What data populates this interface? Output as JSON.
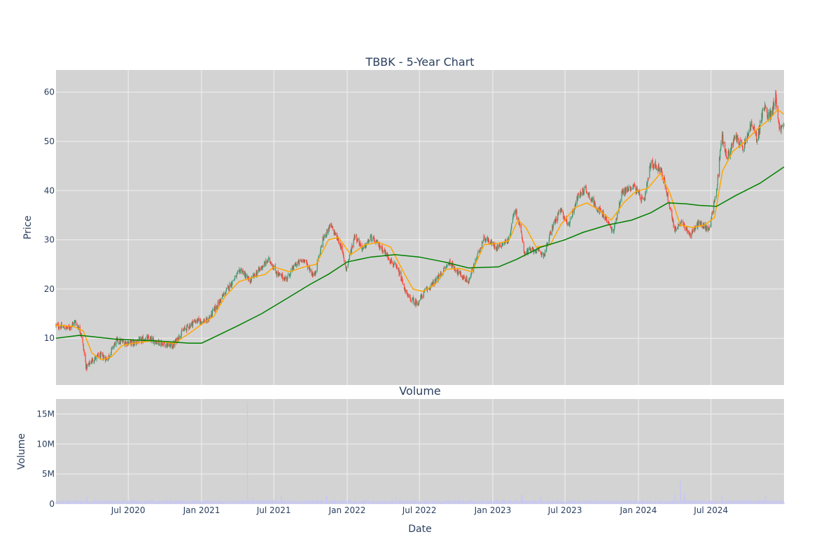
{
  "chart_data": [
    {
      "type": "candlestick",
      "title": "TBBK - 5-Year Chart",
      "ylabel": "Price",
      "ylim": [
        0.5,
        64.5
      ],
      "y_ticks": [
        10,
        20,
        30,
        40,
        50,
        60
      ],
      "x_range": [
        "2020-01-02",
        "2024-12-31"
      ],
      "x_ticks": [
        {
          "date": "2020-07-01",
          "label": "Jul 2020"
        },
        {
          "date": "2021-01-01",
          "label": "Jan 2021"
        },
        {
          "date": "2021-07-01",
          "label": "Jul 2021"
        },
        {
          "date": "2022-01-01",
          "label": "Jan 2022"
        },
        {
          "date": "2022-07-01",
          "label": "Jul 2022"
        },
        {
          "date": "2023-01-01",
          "label": "Jan 2023"
        },
        {
          "date": "2023-07-01",
          "label": "Jul 2023"
        },
        {
          "date": "2024-01-01",
          "label": "Jan 2024"
        },
        {
          "date": "2024-07-01",
          "label": "Jul 2024"
        }
      ],
      "grid": true,
      "colors": {
        "increasing": "#3d9970",
        "decreasing": "#ff4136",
        "ma_short": "#ffa500",
        "ma_long": "#008000",
        "background": "#d3d3d3",
        "grid": "#f0f0f0"
      },
      "price_path": [
        [
          "2020-01-02",
          12.6
        ],
        [
          "2020-02-01",
          12.0
        ],
        [
          "2020-02-20",
          13.4
        ],
        [
          "2020-03-05",
          11.0
        ],
        [
          "2020-03-18",
          4.0
        ],
        [
          "2020-04-01",
          5.5
        ],
        [
          "2020-04-20",
          6.5
        ],
        [
          "2020-05-10",
          5.8
        ],
        [
          "2020-06-01",
          9.5
        ],
        [
          "2020-06-20",
          9.2
        ],
        [
          "2020-07-15",
          9.0
        ],
        [
          "2020-08-15",
          10.0
        ],
        [
          "2020-09-15",
          9.2
        ],
        [
          "2020-10-20",
          8.4
        ],
        [
          "2020-11-15",
          11.5
        ],
        [
          "2020-12-15",
          13.5
        ],
        [
          "2021-01-15",
          13.5
        ],
        [
          "2021-02-15",
          17.5
        ],
        [
          "2021-03-15",
          21.0
        ],
        [
          "2021-04-10",
          24.0
        ],
        [
          "2021-05-01",
          21.5
        ],
        [
          "2021-06-01",
          24.5
        ],
        [
          "2021-06-20",
          26.0
        ],
        [
          "2021-07-10",
          23.0
        ],
        [
          "2021-08-01",
          22.0
        ],
        [
          "2021-08-25",
          25.0
        ],
        [
          "2021-09-15",
          26.0
        ],
        [
          "2021-10-10",
          22.5
        ],
        [
          "2021-11-01",
          30.0
        ],
        [
          "2021-11-20",
          33.0
        ],
        [
          "2021-12-15",
          29.0
        ],
        [
          "2021-12-30",
          24.0
        ],
        [
          "2022-01-20",
          31.0
        ],
        [
          "2022-02-10",
          28.0
        ],
        [
          "2022-03-01",
          30.5
        ],
        [
          "2022-04-01",
          28.0
        ],
        [
          "2022-05-10",
          23.5
        ],
        [
          "2022-06-01",
          18.5
        ],
        [
          "2022-06-25",
          17.0
        ],
        [
          "2022-07-15",
          19.5
        ],
        [
          "2022-08-15",
          22.0
        ],
        [
          "2022-09-15",
          25.5
        ],
        [
          "2022-10-10",
          23.0
        ],
        [
          "2022-11-01",
          21.5
        ],
        [
          "2022-11-20",
          26.0
        ],
        [
          "2022-12-10",
          30.5
        ],
        [
          "2023-01-10",
          28.5
        ],
        [
          "2023-02-10",
          30.0
        ],
        [
          "2023-02-25",
          36.5
        ],
        [
          "2023-03-10",
          33.0
        ],
        [
          "2023-03-20",
          27.5
        ],
        [
          "2023-04-15",
          28.0
        ],
        [
          "2023-05-10",
          27.0
        ],
        [
          "2023-06-01",
          33.0
        ],
        [
          "2023-06-20",
          36.0
        ],
        [
          "2023-07-10",
          33.0
        ],
        [
          "2023-08-01",
          38.5
        ],
        [
          "2023-08-20",
          40.5
        ],
        [
          "2023-09-15",
          37.0
        ],
        [
          "2023-10-10",
          34.5
        ],
        [
          "2023-10-30",
          31.5
        ],
        [
          "2023-11-20",
          39.5
        ],
        [
          "2023-12-20",
          41.0
        ],
        [
          "2024-01-15",
          37.5
        ],
        [
          "2024-02-01",
          45.5
        ],
        [
          "2024-02-25",
          44.5
        ],
        [
          "2024-03-10",
          40.5
        ],
        [
          "2024-04-01",
          32.0
        ],
        [
          "2024-04-20",
          33.5
        ],
        [
          "2024-05-10",
          31.0
        ],
        [
          "2024-06-01",
          33.5
        ],
        [
          "2024-06-25",
          32.0
        ],
        [
          "2024-07-15",
          40.0
        ],
        [
          "2024-07-28",
          51.5
        ],
        [
          "2024-08-10",
          46.5
        ],
        [
          "2024-09-01",
          51.0
        ],
        [
          "2024-09-20",
          48.5
        ],
        [
          "2024-10-10",
          53.5
        ],
        [
          "2024-10-25",
          50.5
        ],
        [
          "2024-11-10",
          57.0
        ],
        [
          "2024-11-25",
          55.0
        ],
        [
          "2024-12-10",
          59.0
        ],
        [
          "2024-12-20",
          52.5
        ],
        [
          "2024-12-31",
          53.0
        ]
      ],
      "series": [
        {
          "values": [
            [
              "2020-01-02",
              12.6
            ],
            [
              "2020-02-15",
              12.4
            ],
            [
              "2020-03-10",
              11.5
            ],
            [
              "2020-04-01",
              7.0
            ],
            [
              "2020-04-25",
              5.6
            ],
            [
              "2020-05-20",
              6.2
            ],
            [
              "2020-06-15",
              8.5
            ],
            [
              "2020-07-15",
              9.0
            ],
            [
              "2020-09-01",
              9.5
            ],
            [
              "2020-10-25",
              9.0
            ],
            [
              "2020-12-01",
              11.0
            ],
            [
              "2021-01-01",
              12.8
            ],
            [
              "2021-02-01",
              14.5
            ],
            [
              "2021-03-01",
              18.5
            ],
            [
              "2021-04-05",
              21.5
            ],
            [
              "2021-05-15",
              22.5
            ],
            [
              "2021-06-10",
              23.0
            ],
            [
              "2021-07-01",
              24.5
            ],
            [
              "2021-08-10",
              23.5
            ],
            [
              "2021-09-15",
              24.5
            ],
            [
              "2021-10-15",
              25.0
            ],
            [
              "2021-11-15",
              30.0
            ],
            [
              "2021-12-10",
              30.5
            ],
            [
              "2022-01-10",
              27.0
            ],
            [
              "2022-02-15",
              29.0
            ],
            [
              "2022-03-20",
              29.5
            ],
            [
              "2022-04-20",
              28.5
            ],
            [
              "2022-05-25",
              23.0
            ],
            [
              "2022-06-15",
              20.0
            ],
            [
              "2022-07-10",
              19.5
            ],
            [
              "2022-08-10",
              21.0
            ],
            [
              "2022-09-05",
              24.0
            ],
            [
              "2022-10-10",
              24.2
            ],
            [
              "2022-11-10",
              23.5
            ],
            [
              "2022-12-10",
              29.0
            ],
            [
              "2023-01-15",
              29.3
            ],
            [
              "2023-02-10",
              29.8
            ],
            [
              "2023-03-05",
              34.0
            ],
            [
              "2023-03-25",
              32.5
            ],
            [
              "2023-04-20",
              28.5
            ],
            [
              "2023-05-25",
              29.0
            ],
            [
              "2023-06-20",
              33.0
            ],
            [
              "2023-07-25",
              36.5
            ],
            [
              "2023-08-25",
              37.5
            ],
            [
              "2023-09-25",
              36.0
            ],
            [
              "2023-10-25",
              34.0
            ],
            [
              "2023-11-25",
              37.5
            ],
            [
              "2023-12-25",
              39.8
            ],
            [
              "2024-01-25",
              40.5
            ],
            [
              "2024-02-25",
              43.5
            ],
            [
              "2024-03-20",
              39.5
            ],
            [
              "2024-04-15",
              33.0
            ],
            [
              "2024-05-15",
              32.5
            ],
            [
              "2024-06-15",
              33.0
            ],
            [
              "2024-07-10",
              34.5
            ],
            [
              "2024-07-30",
              44.0
            ],
            [
              "2024-08-25",
              48.0
            ],
            [
              "2024-09-25",
              50.0
            ],
            [
              "2024-10-25",
              52.5
            ],
            [
              "2024-11-25",
              54.5
            ],
            [
              "2024-12-15",
              56.5
            ],
            [
              "2024-12-31",
              55.5
            ]
          ]
        },
        {
          "values": [
            [
              "2020-01-02",
              10.0
            ],
            [
              "2020-03-01",
              10.6
            ],
            [
              "2020-06-01",
              9.8
            ],
            [
              "2020-09-01",
              9.5
            ],
            [
              "2020-12-01",
              9.0
            ],
            [
              "2021-01-01",
              9.0
            ],
            [
              "2021-02-01",
              10.2
            ],
            [
              "2021-04-01",
              12.5
            ],
            [
              "2021-06-01",
              15.0
            ],
            [
              "2021-08-01",
              18.0
            ],
            [
              "2021-10-01",
              21.0
            ],
            [
              "2021-11-15",
              23.0
            ],
            [
              "2022-01-01",
              25.5
            ],
            [
              "2022-03-01",
              26.5
            ],
            [
              "2022-05-01",
              27.0
            ],
            [
              "2022-07-01",
              26.5
            ],
            [
              "2022-09-01",
              25.5
            ],
            [
              "2022-11-01",
              24.3
            ],
            [
              "2023-01-15",
              24.5
            ],
            [
              "2023-03-01",
              26.0
            ],
            [
              "2023-05-01",
              28.5
            ],
            [
              "2023-07-01",
              30.0
            ],
            [
              "2023-08-15",
              31.5
            ],
            [
              "2023-10-15",
              33.0
            ],
            [
              "2023-12-15",
              34.0
            ],
            [
              "2024-02-01",
              35.5
            ],
            [
              "2024-03-15",
              37.5
            ],
            [
              "2024-05-01",
              37.3
            ],
            [
              "2024-06-01",
              37.0
            ],
            [
              "2024-07-15",
              36.8
            ],
            [
              "2024-09-01",
              39.0
            ],
            [
              "2024-11-01",
              41.5
            ],
            [
              "2024-12-31",
              44.8
            ]
          ]
        }
      ]
    },
    {
      "type": "bar",
      "title": "Volume",
      "xlabel": "Date",
      "ylabel": "Volume",
      "ylim": [
        0,
        17500000
      ],
      "y_ticks": [
        {
          "value": 0,
          "label": "0"
        },
        {
          "value": 5000000,
          "label": "5M"
        },
        {
          "value": 10000000,
          "label": "10M"
        },
        {
          "value": 15000000,
          "label": "15M"
        }
      ],
      "bar_color": "#c8c8f0",
      "baseline_volume": 550000,
      "spikes": [
        [
          "2020-03-20",
          1200000
        ],
        [
          "2020-06-20",
          900000
        ],
        [
          "2021-04-25",
          17000000
        ],
        [
          "2021-05-10",
          1100000
        ],
        [
          "2021-07-20",
          1300000
        ],
        [
          "2021-11-10",
          1400000
        ],
        [
          "2022-05-01",
          1000000
        ],
        [
          "2023-03-15",
          1500000
        ],
        [
          "2023-05-01",
          1200000
        ],
        [
          "2024-04-01",
          1600000
        ],
        [
          "2024-04-15",
          3800000
        ],
        [
          "2024-04-25",
          1800000
        ],
        [
          "2024-07-28",
          1500000
        ],
        [
          "2024-11-15",
          1300000
        ]
      ]
    }
  ]
}
